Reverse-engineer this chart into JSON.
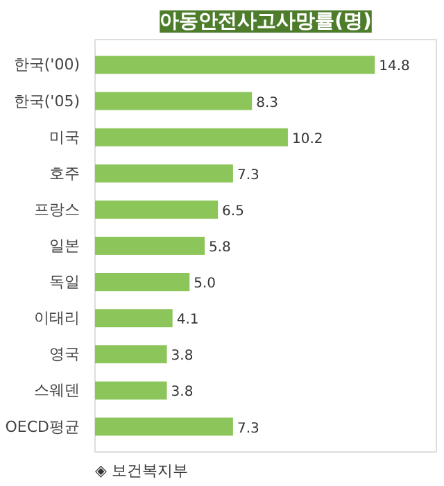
{
  "chart_data": {
    "type": "bar",
    "orientation": "horizontal",
    "title": "아동안전사고사망률(명)",
    "categories": [
      "한국('00)",
      "한국('05)",
      "미국",
      "호주",
      "프랑스",
      "일본",
      "독일",
      "이태리",
      "영국",
      "스웨덴",
      "OECD평균"
    ],
    "values": [
      14.8,
      8.3,
      10.2,
      7.3,
      6.5,
      5.8,
      5.0,
      4.1,
      3.8,
      3.8,
      7.3
    ],
    "color": "#8cc65a",
    "value_labels": [
      "14.8",
      "8.3",
      "10.2",
      "7.3",
      "6.5",
      "5.8",
      "5.0",
      "4.1",
      "3.8",
      "3.8",
      "7.3"
    ],
    "grid": false,
    "annotations": [
      "◈ 보건복지부"
    ]
  }
}
